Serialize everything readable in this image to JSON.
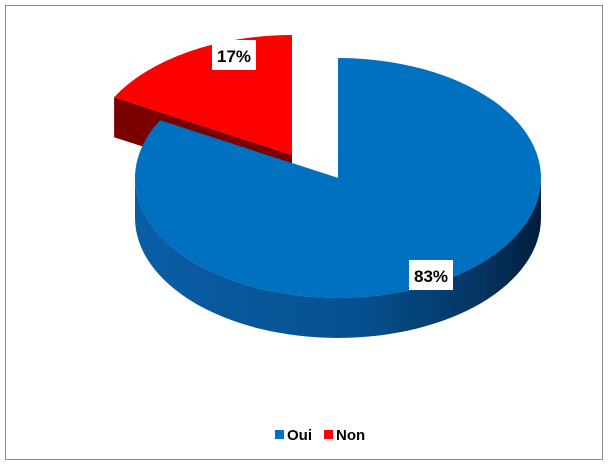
{
  "chart_data": {
    "type": "pie",
    "categories": [
      "Oui",
      "Non"
    ],
    "values": [
      83,
      17
    ],
    "data_labels": [
      "83%",
      "17%"
    ],
    "colors": [
      "#0070C0",
      "#FF0000"
    ],
    "exploded": "Non",
    "three_d": true,
    "legend": "bottom"
  }
}
